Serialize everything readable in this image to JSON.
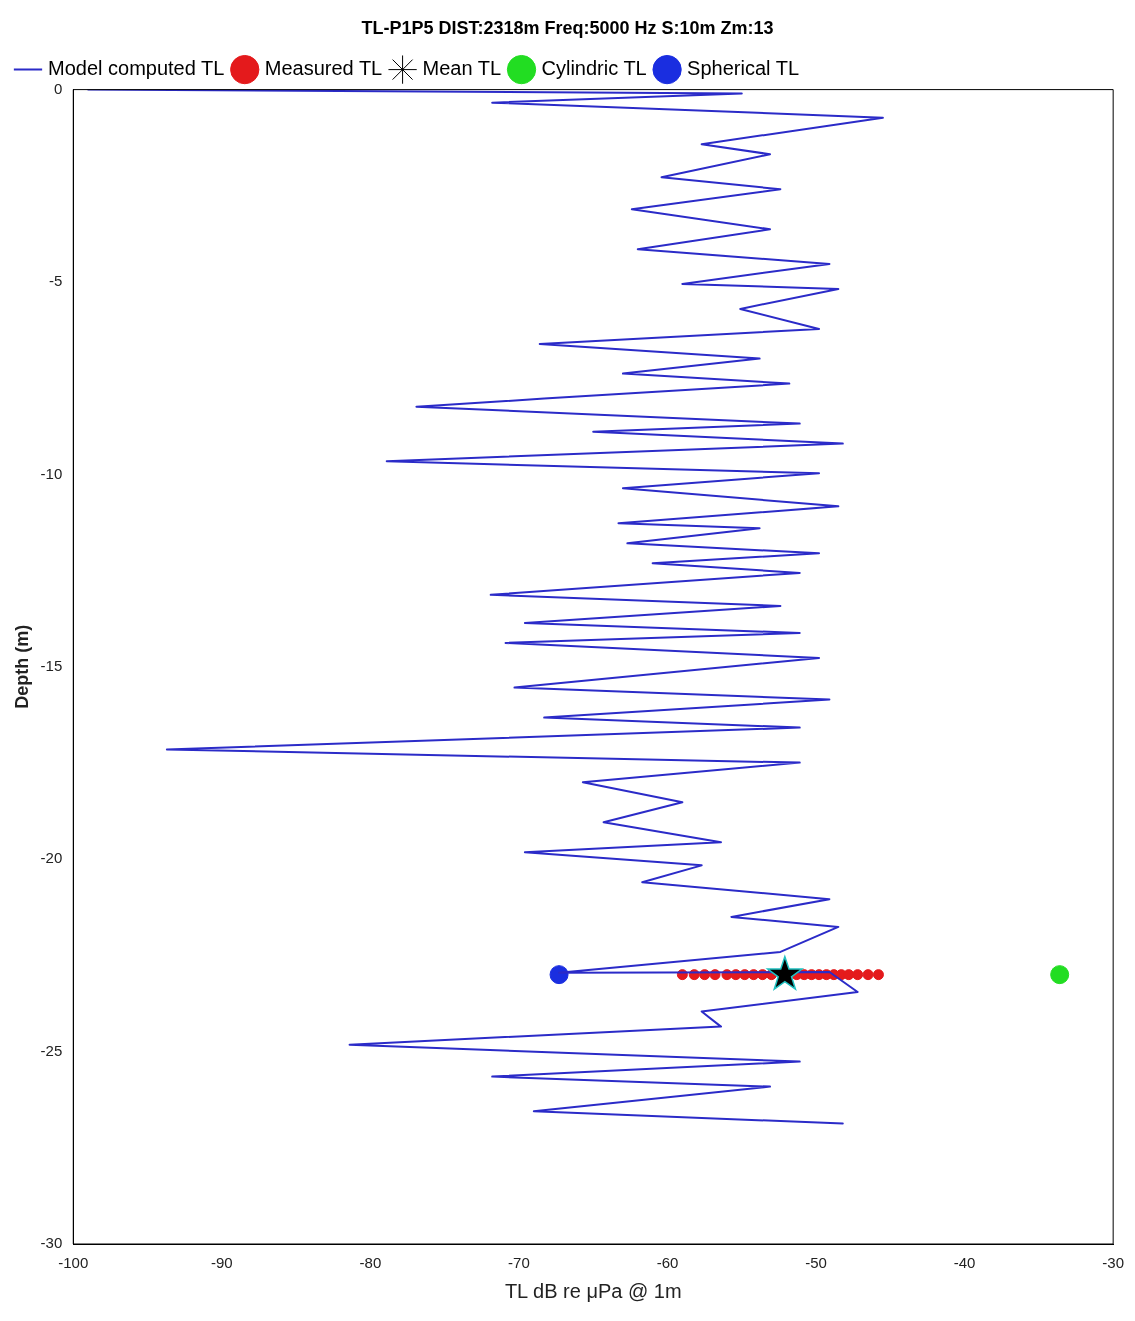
{
  "chart_data": {
    "type": "line",
    "title": "TL-P1P5 DIST:2318m Freq:5000 Hz S:10m Zm:13",
    "xlabel": "TL dB re μPa @ 1m",
    "ylabel": "Depth (m)",
    "xlim": [
      -100,
      -30
    ],
    "xticks": [
      -100,
      -90,
      -80,
      -70,
      -60,
      -50,
      -40,
      -30
    ],
    "ylim": [
      -30,
      0
    ],
    "yticks": [
      -30,
      -25,
      -20,
      -15,
      -10,
      -5,
      0
    ],
    "grid": false,
    "legend": "top left",
    "series": [
      {
        "name": "Model computed TL",
        "type": "line",
        "marker": "none",
        "color": "#2b2bc8",
        "x": [
          -99,
          -55,
          -71.8,
          -45.5,
          -57.7,
          -53.1,
          -60.4,
          -52.4,
          -62.4,
          -53.1,
          -62,
          -49.1,
          -59,
          -48.5,
          -55.1,
          -49.8,
          -68.6,
          -53.8,
          -63,
          -51.8,
          -68.3,
          -76.9,
          -51.1,
          -65,
          -48.2,
          -78.9,
          -49.8,
          -63,
          -48.5,
          -63.3,
          -53.8,
          -62.7,
          -49.8,
          -61,
          -51.1,
          -71.9,
          -52.4,
          -69.6,
          -51.1,
          -70.9,
          -49.8,
          -70.3,
          -49.1,
          -68.3,
          -51.1,
          -93.7,
          -51.1,
          -65.7,
          -59,
          -64.3,
          -56.4,
          -69.6,
          -57.7,
          -61.7,
          -49.1,
          -55.7,
          -48.5,
          -52.4,
          -67.3,
          -49.1,
          -47.2,
          -57.7,
          -56.4,
          -81.4,
          -51.1,
          -71.8,
          -53.1,
          -69,
          -48.2
        ],
        "values": [
          0,
          -0.1,
          -0.34,
          -0.73,
          -1.42,
          -1.68,
          -2.28,
          -2.59,
          -3.11,
          -3.63,
          -4.15,
          -4.53,
          -5.05,
          -5.18,
          -5.7,
          -6.22,
          -6.61,
          -6.99,
          -7.38,
          -7.64,
          -8.03,
          -8.24,
          -8.68,
          -8.89,
          -9.2,
          -9.66,
          -9.97,
          -10.36,
          -10.83,
          -11.27,
          -11.4,
          -11.79,
          -12.05,
          -12.31,
          -12.56,
          -13.13,
          -13.42,
          -13.86,
          -14.12,
          -14.38,
          -14.77,
          -15.54,
          -15.85,
          -16.32,
          -16.58,
          -17.15,
          -17.49,
          -18,
          -18.52,
          -19.04,
          -19.56,
          -19.82,
          -20.16,
          -20.6,
          -21.04,
          -21.5,
          -21.76,
          -22.41,
          -22.95,
          -22.93,
          -23.45,
          -23.96,
          -24.35,
          -24.82,
          -25.26,
          -25.65,
          -25.91,
          -26.55,
          -26.87
        ]
      },
      {
        "name": "Measured TL",
        "type": "scatter",
        "marker": "circle",
        "color": "#e41a1c",
        "x": [
          -59,
          -58.2,
          -57.5,
          -56.8,
          -56,
          -55.4,
          -54.8,
          -54.2,
          -53.6,
          -53,
          -51.3,
          -50.8,
          -50.3,
          -49.8,
          -49.3,
          -48.8,
          -48.3,
          -47.8,
          -47.2,
          -46.5,
          -45.8
        ],
        "values": [
          -23,
          -23,
          -23,
          -23,
          -23,
          -23,
          -23,
          -23,
          -23,
          -23,
          -23,
          -23,
          -23,
          -23,
          -23,
          -23,
          -23,
          -23,
          -23,
          -23,
          -23
        ]
      },
      {
        "name": "Mean TL",
        "type": "scatter",
        "marker": "star",
        "color": "#000000",
        "x": [
          -52.1
        ],
        "values": [
          -23
        ]
      },
      {
        "name": "Cylindric TL",
        "type": "scatter",
        "marker": "circle",
        "color": "#22dd22",
        "x": [
          -33.6
        ],
        "values": [
          -23
        ]
      },
      {
        "name": "Spherical TL",
        "type": "scatter",
        "marker": "circle",
        "color": "#1a2ee0",
        "x": [
          -67.3
        ],
        "values": [
          -23
        ]
      }
    ]
  }
}
